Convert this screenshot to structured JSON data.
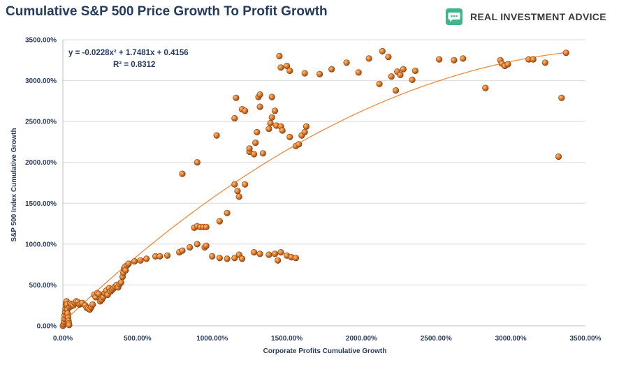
{
  "header": {
    "title": "Cumulative S&P 500 Price Growth To Profit Growth",
    "brand": "REAL INVESTMENT ADVICE",
    "brand_icon": "chat-bubble-icon",
    "brand_color": "#3fb58a"
  },
  "chart_data": {
    "type": "scatter",
    "title": "Cumulative S&P 500 Price Growth To Profit Growth",
    "xlabel": "Corporate Profits Cumulative Growth",
    "ylabel": "S&P 500 Index Cumulative Growth",
    "xlim": [
      0,
      3500
    ],
    "ylim": [
      0,
      3500
    ],
    "x_ticks": [
      "0.00%",
      "500.00%",
      "1000.00%",
      "1500.00%",
      "2000.00%",
      "2500.00%",
      "3000.00%",
      "3500.00%"
    ],
    "y_ticks": [
      "0.00%",
      "500.00%",
      "1000.00%",
      "1500.00%",
      "2000.00%",
      "2500.00%",
      "3000.00%",
      "3500.00%"
    ],
    "marker_color": "#e07b2e",
    "trend_color": "#f08a3c",
    "trendline": {
      "type": "polynomial-2",
      "equation": "y = -0.0228x² + 1.7481x + 0.4156",
      "r_squared": "R² = 0.8312",
      "coefficients": {
        "a": -0.0228,
        "b": 1.7481,
        "c": 0.4156
      }
    },
    "points": [
      [
        0,
        0
      ],
      [
        5,
        20
      ],
      [
        8,
        50
      ],
      [
        10,
        90
      ],
      [
        12,
        130
      ],
      [
        15,
        170
      ],
      [
        18,
        210
      ],
      [
        20,
        250
      ],
      [
        22,
        280
      ],
      [
        25,
        300
      ],
      [
        28,
        260
      ],
      [
        30,
        200
      ],
      [
        32,
        150
      ],
      [
        35,
        100
      ],
      [
        38,
        60
      ],
      [
        40,
        30
      ],
      [
        42,
        10
      ],
      [
        45,
        230
      ],
      [
        50,
        270
      ],
      [
        55,
        240
      ],
      [
        60,
        260
      ],
      [
        70,
        250
      ],
      [
        80,
        280
      ],
      [
        90,
        300
      ],
      [
        100,
        290
      ],
      [
        110,
        260
      ],
      [
        120,
        270
      ],
      [
        130,
        280
      ],
      [
        150,
        250
      ],
      [
        160,
        220
      ],
      [
        170,
        210
      ],
      [
        180,
        200
      ],
      [
        190,
        230
      ],
      [
        200,
        260
      ],
      [
        210,
        380
      ],
      [
        220,
        350
      ],
      [
        230,
        400
      ],
      [
        240,
        390
      ],
      [
        250,
        300
      ],
      [
        260,
        320
      ],
      [
        270,
        350
      ],
      [
        280,
        400
      ],
      [
        290,
        430
      ],
      [
        300,
        380
      ],
      [
        310,
        460
      ],
      [
        320,
        420
      ],
      [
        330,
        440
      ],
      [
        340,
        460
      ],
      [
        350,
        480
      ],
      [
        360,
        500
      ],
      [
        370,
        470
      ],
      [
        380,
        510
      ],
      [
        390,
        530
      ],
      [
        400,
        600
      ],
      [
        405,
        650
      ],
      [
        410,
        700
      ],
      [
        415,
        720
      ],
      [
        420,
        680
      ],
      [
        430,
        740
      ],
      [
        440,
        760
      ],
      [
        480,
        790
      ],
      [
        520,
        800
      ],
      [
        560,
        820
      ],
      [
        620,
        850
      ],
      [
        650,
        850
      ],
      [
        700,
        860
      ],
      [
        780,
        900
      ],
      [
        800,
        920
      ],
      [
        850,
        960
      ],
      [
        900,
        1000
      ],
      [
        950,
        960
      ],
      [
        960,
        980
      ],
      [
        1000,
        850
      ],
      [
        1050,
        830
      ],
      [
        1100,
        820
      ],
      [
        1150,
        830
      ],
      [
        1180,
        870
      ],
      [
        1200,
        820
      ],
      [
        1280,
        900
      ],
      [
        1320,
        880
      ],
      [
        1380,
        870
      ],
      [
        1420,
        880
      ],
      [
        1440,
        800
      ],
      [
        1460,
        900
      ],
      [
        1500,
        860
      ],
      [
        1530,
        840
      ],
      [
        1560,
        830
      ],
      [
        880,
        1200
      ],
      [
        900,
        1220
      ],
      [
        920,
        1210
      ],
      [
        940,
        1210
      ],
      [
        960,
        1210
      ],
      [
        1050,
        1280
      ],
      [
        1100,
        1380
      ],
      [
        1150,
        1730
      ],
      [
        1170,
        1650
      ],
      [
        1180,
        1580
      ],
      [
        1220,
        1730
      ],
      [
        800,
        1860
      ],
      [
        900,
        2000
      ],
      [
        1030,
        2330
      ],
      [
        1150,
        2540
      ],
      [
        1160,
        2790
      ],
      [
        1200,
        2650
      ],
      [
        1220,
        2630
      ],
      [
        1250,
        2130
      ],
      [
        1250,
        2170
      ],
      [
        1280,
        2100
      ],
      [
        1290,
        2240
      ],
      [
        1300,
        2370
      ],
      [
        1310,
        2800
      ],
      [
        1320,
        2830
      ],
      [
        1320,
        2680
      ],
      [
        1340,
        2110
      ],
      [
        1380,
        2410
      ],
      [
        1390,
        2480
      ],
      [
        1400,
        2550
      ],
      [
        1420,
        2630
      ],
      [
        1430,
        2450
      ],
      [
        1460,
        2440
      ],
      [
        1470,
        2390
      ],
      [
        1520,
        2310
      ],
      [
        1560,
        2200
      ],
      [
        1580,
        2220
      ],
      [
        1600,
        2330
      ],
      [
        1620,
        2370
      ],
      [
        1630,
        2440
      ],
      [
        1400,
        2800
      ],
      [
        1450,
        3300
      ],
      [
        1460,
        3160
      ],
      [
        1500,
        3180
      ],
      [
        1520,
        3120
      ],
      [
        1620,
        3090
      ],
      [
        1720,
        3080
      ],
      [
        1800,
        3140
      ],
      [
        1900,
        3220
      ],
      [
        1980,
        3100
      ],
      [
        2050,
        3270
      ],
      [
        2120,
        2960
      ],
      [
        2140,
        3360
      ],
      [
        2180,
        3290
      ],
      [
        2200,
        3050
      ],
      [
        2230,
        2880
      ],
      [
        2240,
        3110
      ],
      [
        2260,
        3070
      ],
      [
        2280,
        3140
      ],
      [
        2340,
        3010
      ],
      [
        2360,
        3120
      ],
      [
        2520,
        3260
      ],
      [
        2620,
        3250
      ],
      [
        2680,
        3270
      ],
      [
        2830,
        2910
      ],
      [
        2930,
        3250
      ],
      [
        2940,
        3210
      ],
      [
        2960,
        3180
      ],
      [
        2980,
        3200
      ],
      [
        3120,
        3260
      ],
      [
        3150,
        3260
      ],
      [
        3230,
        3220
      ],
      [
        3320,
        2070
      ],
      [
        3340,
        2790
      ],
      [
        3370,
        3340
      ]
    ]
  }
}
